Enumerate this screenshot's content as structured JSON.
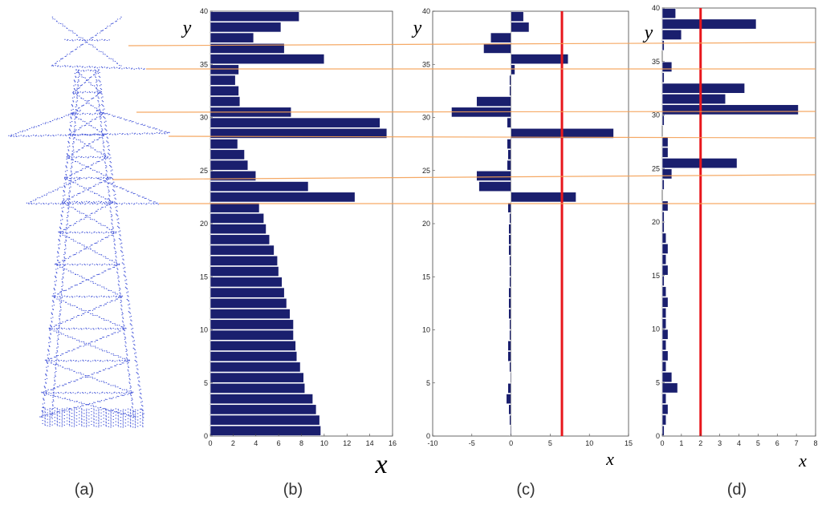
{
  "panel_labels": [
    "(a)",
    "(b)",
    "(c)",
    "(d)"
  ],
  "axis_labels": {
    "y": "y",
    "x": "x"
  },
  "colors": {
    "bar": "#1a1f6e",
    "bar_edge": "#ffffff",
    "threshold": "#e8161b",
    "guide": "#f5a055",
    "tower": "#2b3fd4"
  },
  "tower_image": "transmission-tower-point-cloud",
  "chart_data": [
    {
      "panel": "(b)",
      "type": "bar",
      "orientation": "horizontal",
      "xlim": [
        0,
        16
      ],
      "ylim": [
        0,
        40
      ],
      "xticks": [
        0,
        2,
        4,
        6,
        8,
        10,
        12,
        14,
        16
      ],
      "yticks": [
        0,
        5,
        10,
        15,
        20,
        25,
        30,
        35,
        40
      ],
      "xlabel": "x",
      "ylabel": "y",
      "values": [
        9.7,
        9.6,
        9.3,
        9.0,
        8.3,
        8.2,
        7.9,
        7.6,
        7.5,
        7.3,
        7.3,
        7.0,
        6.7,
        6.5,
        6.3,
        6.0,
        5.9,
        5.6,
        5.2,
        4.9,
        4.7,
        4.3,
        12.7,
        8.6,
        4.0,
        3.3,
        3.0,
        2.4,
        15.5,
        14.9,
        7.1,
        2.6,
        2.5,
        2.2,
        2.5,
        10.0,
        6.5,
        3.8,
        6.2,
        7.8
      ]
    },
    {
      "panel": "(c)",
      "type": "bar",
      "orientation": "horizontal",
      "xlim": [
        -10,
        15
      ],
      "ylim": [
        0,
        40
      ],
      "xticks": [
        -10,
        -5,
        0,
        5,
        10,
        15
      ],
      "yticks": [
        0,
        5,
        10,
        15,
        20,
        25,
        30,
        35,
        40
      ],
      "xlabel": "x",
      "ylabel": "y",
      "threshold": 6.5,
      "values": [
        -0.1,
        -0.2,
        -0.3,
        -0.6,
        -0.4,
        -0.1,
        -0.2,
        -0.4,
        -0.4,
        -0.2,
        -0.2,
        -0.3,
        -0.3,
        -0.3,
        -0.2,
        -0.2,
        -0.2,
        -0.3,
        -0.3,
        -0.3,
        -0.2,
        -0.4,
        8.3,
        -4.1,
        -4.4,
        -0.5,
        -0.4,
        -0.5,
        13.1,
        -0.5,
        -7.6,
        -4.4,
        -0.2,
        -0.2,
        0.5,
        7.3,
        -3.5,
        -2.6,
        2.3,
        1.6
      ]
    },
    {
      "panel": "(d)",
      "type": "bar",
      "orientation": "horizontal",
      "xlim": [
        0,
        8
      ],
      "ylim": [
        0,
        40
      ],
      "xticks": [
        0,
        1,
        2,
        3,
        4,
        5,
        6,
        7,
        8
      ],
      "yticks": [
        0,
        5,
        10,
        15,
        20,
        25,
        30,
        35,
        40
      ],
      "xlabel": "x",
      "ylabel": "y",
      "threshold": 2.0,
      "values": [
        0.1,
        0.2,
        0.3,
        0.2,
        0.8,
        0.5,
        0.2,
        0.3,
        0.2,
        0.3,
        0.2,
        0.2,
        0.3,
        0.2,
        0.1,
        0.3,
        0.2,
        0.3,
        0.2,
        0.1,
        0.1,
        0.3,
        0,
        0.1,
        0.5,
        3.9,
        0.3,
        0.3,
        0,
        0.1,
        7.1,
        3.3,
        4.3,
        0.1,
        0.5,
        0,
        0.1,
        1.0,
        4.9,
        0.7
      ]
    }
  ]
}
